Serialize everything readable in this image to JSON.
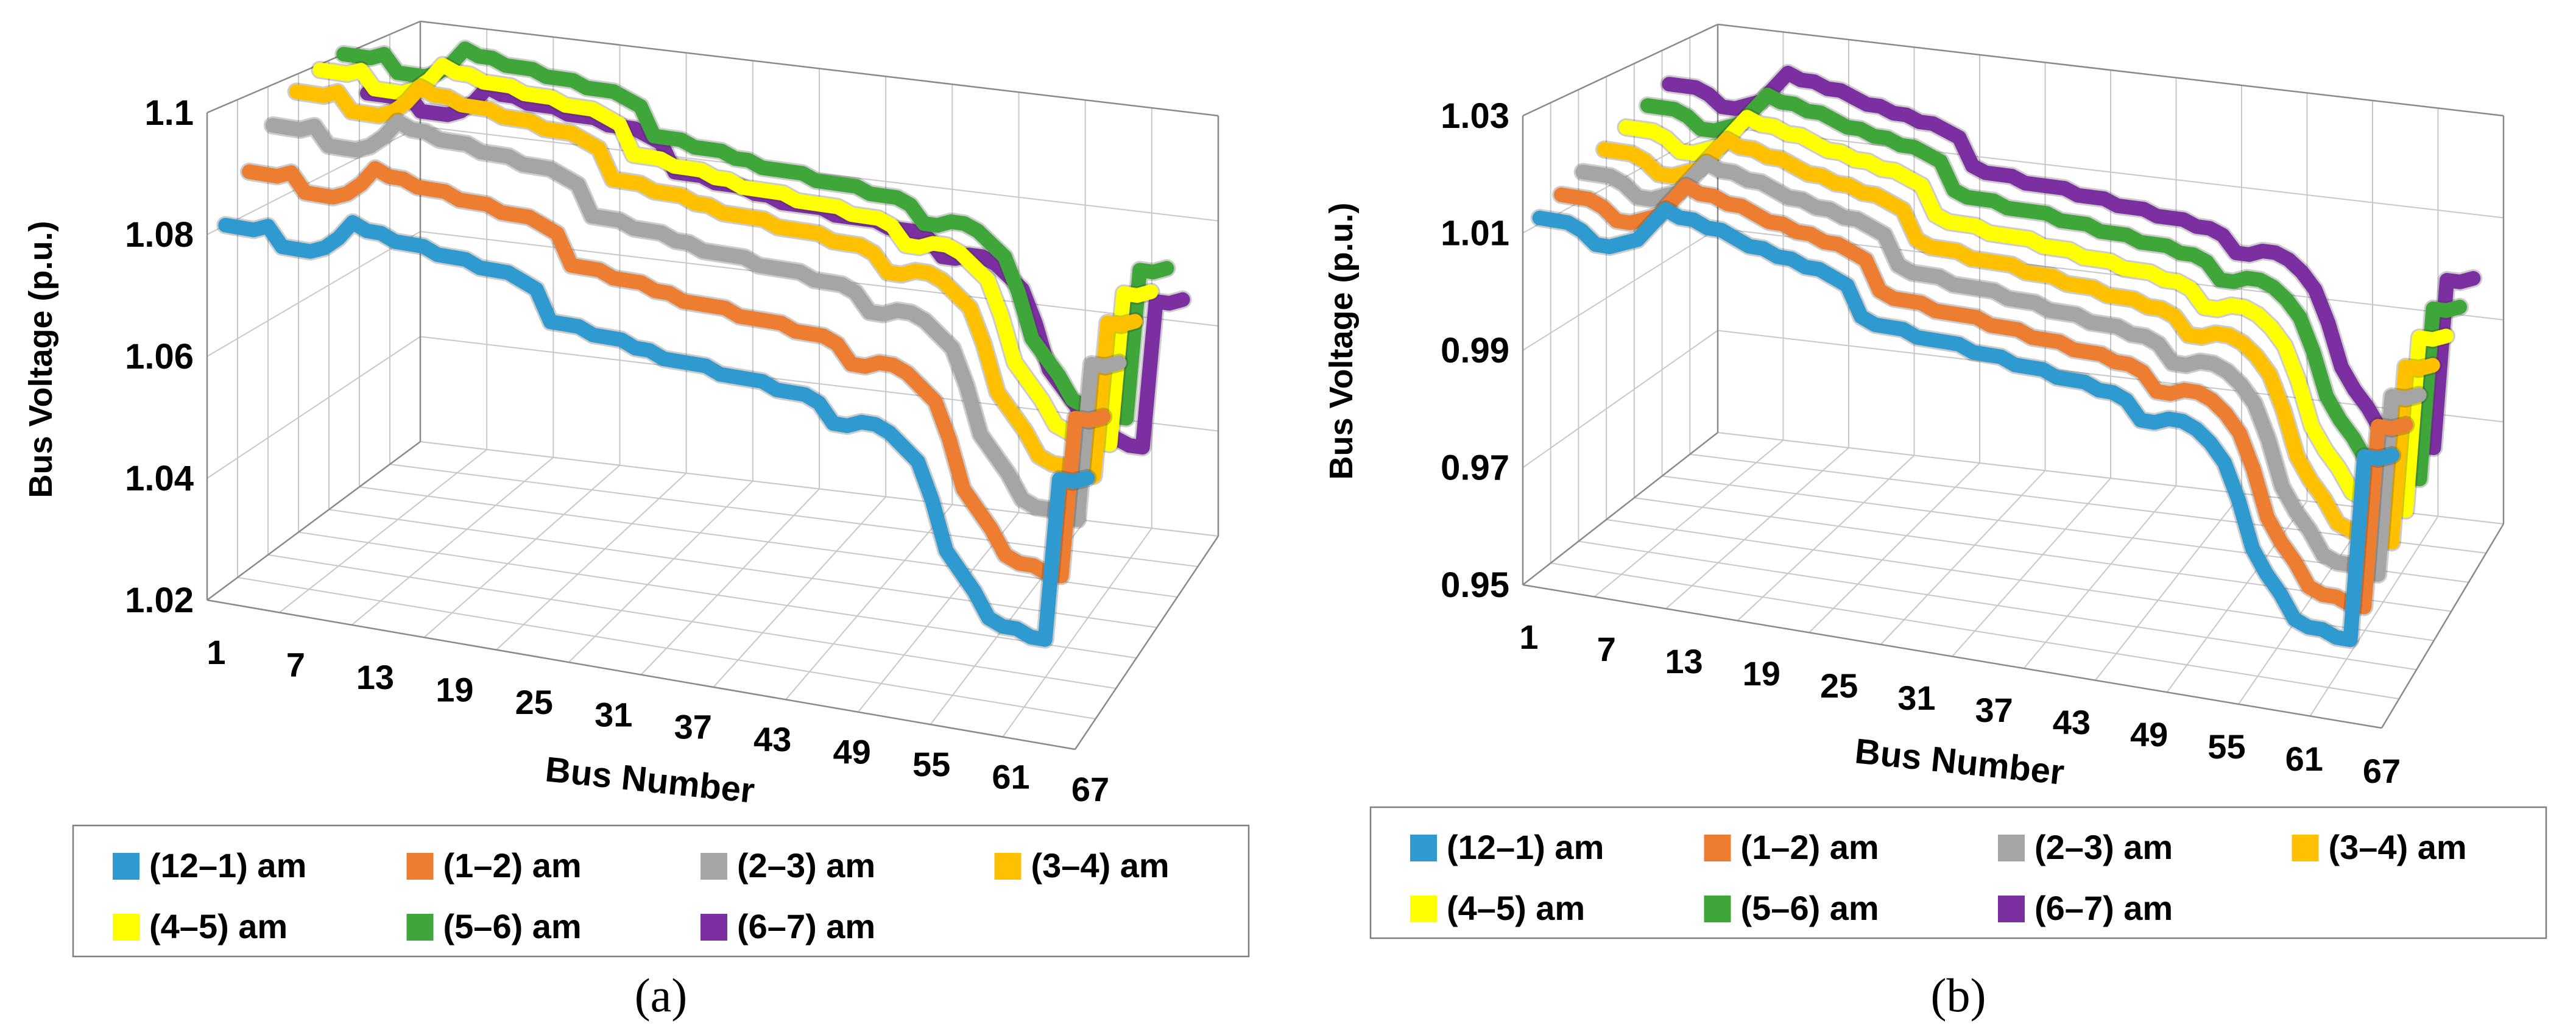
{
  "chart_data": [
    {
      "type": "line",
      "panel_label": "(a)",
      "xlabel": "Bus Number",
      "ylabel": "Bus Voltage (p.u.)",
      "ylim": [
        1.02,
        1.1
      ],
      "y_ticks": [
        "1.02",
        "1.04",
        "1.06",
        "1.08",
        "1.1"
      ],
      "x_ticks": [
        "1",
        "7",
        "13",
        "19",
        "25",
        "31",
        "37",
        "43",
        "49",
        "55",
        "61",
        "67"
      ],
      "legend_position": "bottom",
      "legend": [
        "(12–1) am",
        "(1–2) am",
        "(2–3) am",
        "(3–4) am",
        "(4–5) am",
        "(5–6) am",
        "(6–7) am"
      ],
      "series": [
        {
          "name": "(12–1) am",
          "color": "#2E9AD0",
          "values": [
            1.08,
            1.08,
            1.08,
            1.081,
            1.078,
            1.078,
            1.078,
            1.079,
            1.081,
            1.084,
            1.083,
            1.083,
            1.082,
            1.082,
            1.082,
            1.081,
            1.081,
            1.081,
            1.08,
            1.08,
            1.08,
            1.079,
            1.078,
            1.073,
            1.073,
            1.073,
            1.072,
            1.072,
            1.072,
            1.071,
            1.071,
            1.07,
            1.07,
            1.07,
            1.07,
            1.069,
            1.069,
            1.069,
            1.069,
            1.068,
            1.068,
            1.068,
            1.067,
            1.064,
            1.064,
            1.065,
            1.065,
            1.064,
            1.062,
            1.06,
            1.054,
            1.046,
            1.043,
            1.04,
            1.036,
            1.035,
            1.035,
            1.034,
            1.034,
            1.061,
            1.061,
            1.062
          ]
        },
        {
          "name": "(1–2) am",
          "color": "#ED7D31",
          "values": [
            1.087,
            1.087,
            1.087,
            1.088,
            1.085,
            1.085,
            1.085,
            1.086,
            1.088,
            1.091,
            1.09,
            1.09,
            1.089,
            1.089,
            1.089,
            1.088,
            1.088,
            1.088,
            1.087,
            1.087,
            1.087,
            1.086,
            1.085,
            1.08,
            1.08,
            1.08,
            1.079,
            1.079,
            1.079,
            1.078,
            1.078,
            1.077,
            1.077,
            1.077,
            1.077,
            1.076,
            1.076,
            1.076,
            1.076,
            1.075,
            1.075,
            1.075,
            1.074,
            1.071,
            1.071,
            1.072,
            1.072,
            1.071,
            1.069,
            1.067,
            1.061,
            1.053,
            1.05,
            1.047,
            1.043,
            1.042,
            1.042,
            1.041,
            1.041,
            1.068,
            1.068,
            1.069
          ]
        },
        {
          "name": "(2–3) am",
          "color": "#A5A5A5",
          "values": [
            1.093,
            1.093,
            1.093,
            1.094,
            1.091,
            1.091,
            1.091,
            1.092,
            1.094,
            1.097,
            1.096,
            1.096,
            1.095,
            1.095,
            1.095,
            1.094,
            1.094,
            1.094,
            1.093,
            1.093,
            1.093,
            1.092,
            1.091,
            1.086,
            1.086,
            1.086,
            1.085,
            1.085,
            1.085,
            1.084,
            1.084,
            1.083,
            1.083,
            1.083,
            1.083,
            1.082,
            1.082,
            1.082,
            1.082,
            1.081,
            1.081,
            1.081,
            1.08,
            1.077,
            1.077,
            1.078,
            1.078,
            1.077,
            1.075,
            1.073,
            1.067,
            1.059,
            1.056,
            1.053,
            1.049,
            1.048,
            1.048,
            1.047,
            1.047,
            1.074,
            1.074,
            1.075
          ]
        },
        {
          "name": "(3–4) am",
          "color": "#FFC000",
          "values": [
            1.097,
            1.097,
            1.097,
            1.098,
            1.095,
            1.095,
            1.095,
            1.096,
            1.098,
            1.101,
            1.1,
            1.1,
            1.099,
            1.099,
            1.099,
            1.098,
            1.098,
            1.098,
            1.097,
            1.097,
            1.097,
            1.096,
            1.095,
            1.09,
            1.09,
            1.09,
            1.089,
            1.089,
            1.089,
            1.088,
            1.088,
            1.087,
            1.087,
            1.087,
            1.087,
            1.086,
            1.086,
            1.086,
            1.086,
            1.085,
            1.085,
            1.085,
            1.084,
            1.081,
            1.081,
            1.082,
            1.082,
            1.081,
            1.079,
            1.077,
            1.071,
            1.063,
            1.06,
            1.057,
            1.053,
            1.052,
            1.052,
            1.051,
            1.051,
            1.078,
            1.078,
            1.079
          ]
        },
        {
          "name": "(4–5) am",
          "color": "#FFFF00",
          "values": [
            1.099,
            1.099,
            1.099,
            1.1,
            1.097,
            1.097,
            1.097,
            1.098,
            1.1,
            1.103,
            1.102,
            1.102,
            1.101,
            1.101,
            1.101,
            1.1,
            1.1,
            1.1,
            1.099,
            1.099,
            1.099,
            1.098,
            1.097,
            1.092,
            1.092,
            1.092,
            1.091,
            1.091,
            1.091,
            1.09,
            1.09,
            1.089,
            1.089,
            1.089,
            1.089,
            1.088,
            1.088,
            1.088,
            1.088,
            1.087,
            1.087,
            1.087,
            1.086,
            1.083,
            1.083,
            1.084,
            1.084,
            1.083,
            1.081,
            1.079,
            1.073,
            1.065,
            1.062,
            1.059,
            1.055,
            1.054,
            1.054,
            1.053,
            1.053,
            1.08,
            1.08,
            1.081
          ]
        },
        {
          "name": "(5–6) am",
          "color": "#3FA63A",
          "values": [
            1.1,
            1.1,
            1.1,
            1.101,
            1.098,
            1.098,
            1.098,
            1.099,
            1.101,
            1.104,
            1.103,
            1.103,
            1.102,
            1.102,
            1.102,
            1.101,
            1.101,
            1.101,
            1.1,
            1.1,
            1.1,
            1.099,
            1.098,
            1.093,
            1.093,
            1.093,
            1.092,
            1.092,
            1.092,
            1.091,
            1.091,
            1.09,
            1.09,
            1.09,
            1.09,
            1.089,
            1.089,
            1.089,
            1.089,
            1.088,
            1.088,
            1.088,
            1.087,
            1.084,
            1.084,
            1.085,
            1.085,
            1.084,
            1.082,
            1.08,
            1.074,
            1.066,
            1.063,
            1.06,
            1.056,
            1.055,
            1.055,
            1.054,
            1.054,
            1.081,
            1.081,
            1.082
          ]
        },
        {
          "name": "(6–7) am",
          "color": "#7B2FA0",
          "values": [
            1.091,
            1.091,
            1.091,
            1.092,
            1.089,
            1.089,
            1.089,
            1.09,
            1.092,
            1.095,
            1.094,
            1.094,
            1.093,
            1.093,
            1.093,
            1.092,
            1.092,
            1.092,
            1.091,
            1.091,
            1.091,
            1.09,
            1.089,
            1.084,
            1.084,
            1.084,
            1.083,
            1.083,
            1.083,
            1.082,
            1.082,
            1.081,
            1.081,
            1.081,
            1.081,
            1.08,
            1.08,
            1.08,
            1.08,
            1.079,
            1.079,
            1.079,
            1.078,
            1.075,
            1.075,
            1.076,
            1.076,
            1.075,
            1.073,
            1.071,
            1.065,
            1.057,
            1.054,
            1.051,
            1.047,
            1.046,
            1.046,
            1.045,
            1.045,
            1.072,
            1.072,
            1.073
          ]
        }
      ]
    },
    {
      "type": "line",
      "panel_label": "(b)",
      "xlabel": "Bus Number",
      "ylabel": "Bus Voltage (p.u.)",
      "ylim": [
        0.95,
        1.03
      ],
      "y_ticks": [
        "0.95",
        "0.97",
        "0.99",
        "1.01",
        "1.03"
      ],
      "x_ticks": [
        "1",
        "7",
        "13",
        "19",
        "25",
        "31",
        "37",
        "43",
        "49",
        "55",
        "61",
        "67"
      ],
      "legend_position": "bottom",
      "legend": [
        "(12–1) am",
        "(1–2) am",
        "(2–3) am",
        "(3–4) am",
        "(4–5) am",
        "(5–6) am",
        "(6–7) am"
      ],
      "series": [
        {
          "name": "(12–1) am",
          "color": "#2E9AD0",
          "values": [
            1.011,
            1.011,
            1.011,
            1.01,
            1.008,
            1.008,
            1.009,
            1.01,
            1.013,
            1.016,
            1.015,
            1.015,
            1.014,
            1.014,
            1.013,
            1.012,
            1.012,
            1.011,
            1.011,
            1.01,
            1.01,
            1.009,
            1.008,
            1.003,
            1.002,
            1.002,
            1.002,
            1.001,
            1.001,
            1.001,
            1.001,
            1.0,
            1.0,
            1.0,
            0.999,
            0.999,
            0.999,
            0.998,
            0.998,
            0.998,
            0.997,
            0.997,
            0.996,
            0.993,
            0.993,
            0.994,
            0.994,
            0.993,
            0.991,
            0.988,
            0.982,
            0.974,
            0.97,
            0.967,
            0.963,
            0.962,
            0.962,
            0.961,
            0.961,
            0.993,
            0.993,
            0.994
          ]
        },
        {
          "name": "(1–2) am",
          "color": "#ED7D31",
          "values": [
            1.013,
            1.013,
            1.013,
            1.012,
            1.01,
            1.01,
            1.011,
            1.012,
            1.015,
            1.018,
            1.017,
            1.017,
            1.016,
            1.016,
            1.015,
            1.014,
            1.014,
            1.013,
            1.013,
            1.012,
            1.012,
            1.011,
            1.01,
            1.005,
            1.004,
            1.004,
            1.004,
            1.003,
            1.003,
            1.003,
            1.003,
            1.002,
            1.002,
            1.002,
            1.001,
            1.001,
            1.001,
            1.0,
            1.0,
            1.0,
            0.999,
            0.999,
            0.998,
            0.995,
            0.995,
            0.996,
            0.996,
            0.995,
            0.993,
            0.99,
            0.984,
            0.976,
            0.972,
            0.969,
            0.965,
            0.964,
            0.964,
            0.963,
            0.963,
            0.995,
            0.995,
            0.996
          ]
        },
        {
          "name": "(2–3) am",
          "color": "#A5A5A5",
          "values": [
            1.015,
            1.015,
            1.015,
            1.014,
            1.012,
            1.012,
            1.013,
            1.014,
            1.017,
            1.02,
            1.019,
            1.019,
            1.018,
            1.018,
            1.017,
            1.016,
            1.016,
            1.015,
            1.015,
            1.014,
            1.014,
            1.013,
            1.012,
            1.007,
            1.006,
            1.006,
            1.006,
            1.005,
            1.005,
            1.005,
            1.005,
            1.004,
            1.004,
            1.004,
            1.003,
            1.003,
            1.003,
            1.002,
            1.002,
            1.002,
            1.001,
            1.001,
            1.0,
            0.997,
            0.997,
            0.998,
            0.998,
            0.997,
            0.995,
            0.992,
            0.986,
            0.978,
            0.974,
            0.971,
            0.967,
            0.966,
            0.966,
            0.965,
            0.965,
            0.997,
            0.997,
            0.998
          ]
        },
        {
          "name": "(3–4) am",
          "color": "#FFC000",
          "values": [
            1.017,
            1.017,
            1.017,
            1.016,
            1.014,
            1.014,
            1.015,
            1.016,
            1.019,
            1.022,
            1.021,
            1.021,
            1.02,
            1.02,
            1.019,
            1.018,
            1.018,
            1.017,
            1.017,
            1.016,
            1.016,
            1.015,
            1.014,
            1.009,
            1.008,
            1.008,
            1.008,
            1.007,
            1.007,
            1.007,
            1.007,
            1.006,
            1.006,
            1.006,
            1.005,
            1.005,
            1.005,
            1.004,
            1.004,
            1.004,
            1.003,
            1.003,
            1.002,
            0.999,
            0.999,
            1.0,
            1.0,
            0.999,
            0.997,
            0.994,
            0.988,
            0.98,
            0.976,
            0.973,
            0.969,
            0.968,
            0.968,
            0.967,
            0.967,
            0.999,
            0.999,
            1.0
          ]
        },
        {
          "name": "(4–5) am",
          "color": "#FFFF00",
          "values": [
            1.019,
            1.019,
            1.019,
            1.018,
            1.016,
            1.016,
            1.017,
            1.018,
            1.021,
            1.024,
            1.023,
            1.023,
            1.022,
            1.022,
            1.021,
            1.02,
            1.02,
            1.019,
            1.019,
            1.018,
            1.018,
            1.017,
            1.016,
            1.011,
            1.01,
            1.01,
            1.01,
            1.009,
            1.009,
            1.009,
            1.009,
            1.008,
            1.008,
            1.008,
            1.007,
            1.007,
            1.007,
            1.006,
            1.006,
            1.006,
            1.005,
            1.005,
            1.004,
            1.001,
            1.001,
            1.002,
            1.002,
            1.001,
            0.999,
            0.996,
            0.99,
            0.982,
            0.978,
            0.975,
            0.971,
            0.97,
            0.97,
            0.969,
            0.969,
            1.001,
            1.001,
            1.002
          ]
        },
        {
          "name": "(5–6) am",
          "color": "#3FA63A",
          "values": [
            1.021,
            1.021,
            1.021,
            1.02,
            1.018,
            1.018,
            1.019,
            1.02,
            1.023,
            1.026,
            1.025,
            1.025,
            1.024,
            1.024,
            1.023,
            1.022,
            1.022,
            1.021,
            1.021,
            1.02,
            1.02,
            1.019,
            1.018,
            1.013,
            1.012,
            1.012,
            1.012,
            1.011,
            1.011,
            1.011,
            1.011,
            1.01,
            1.01,
            1.01,
            1.009,
            1.009,
            1.009,
            1.008,
            1.008,
            1.008,
            1.007,
            1.007,
            1.006,
            1.003,
            1.003,
            1.004,
            1.004,
            1.003,
            1.001,
            0.998,
            0.992,
            0.984,
            0.98,
            0.977,
            0.973,
            0.972,
            0.972,
            0.971,
            0.971,
            1.003,
            1.003,
            1.004
          ]
        },
        {
          "name": "(6–7) am",
          "color": "#7B2FA0",
          "values": [
            1.023,
            1.023,
            1.023,
            1.022,
            1.02,
            1.02,
            1.021,
            1.022,
            1.025,
            1.028,
            1.027,
            1.027,
            1.026,
            1.026,
            1.025,
            1.024,
            1.024,
            1.023,
            1.023,
            1.022,
            1.022,
            1.021,
            1.02,
            1.015,
            1.014,
            1.014,
            1.014,
            1.013,
            1.013,
            1.013,
            1.013,
            1.012,
            1.012,
            1.012,
            1.011,
            1.011,
            1.011,
            1.01,
            1.01,
            1.01,
            1.009,
            1.009,
            1.008,
            1.005,
            1.005,
            1.006,
            1.006,
            1.005,
            1.003,
            1.0,
            0.994,
            0.986,
            0.982,
            0.979,
            0.975,
            0.974,
            0.974,
            0.973,
            0.973,
            1.005,
            1.005,
            1.006
          ]
        }
      ]
    }
  ]
}
